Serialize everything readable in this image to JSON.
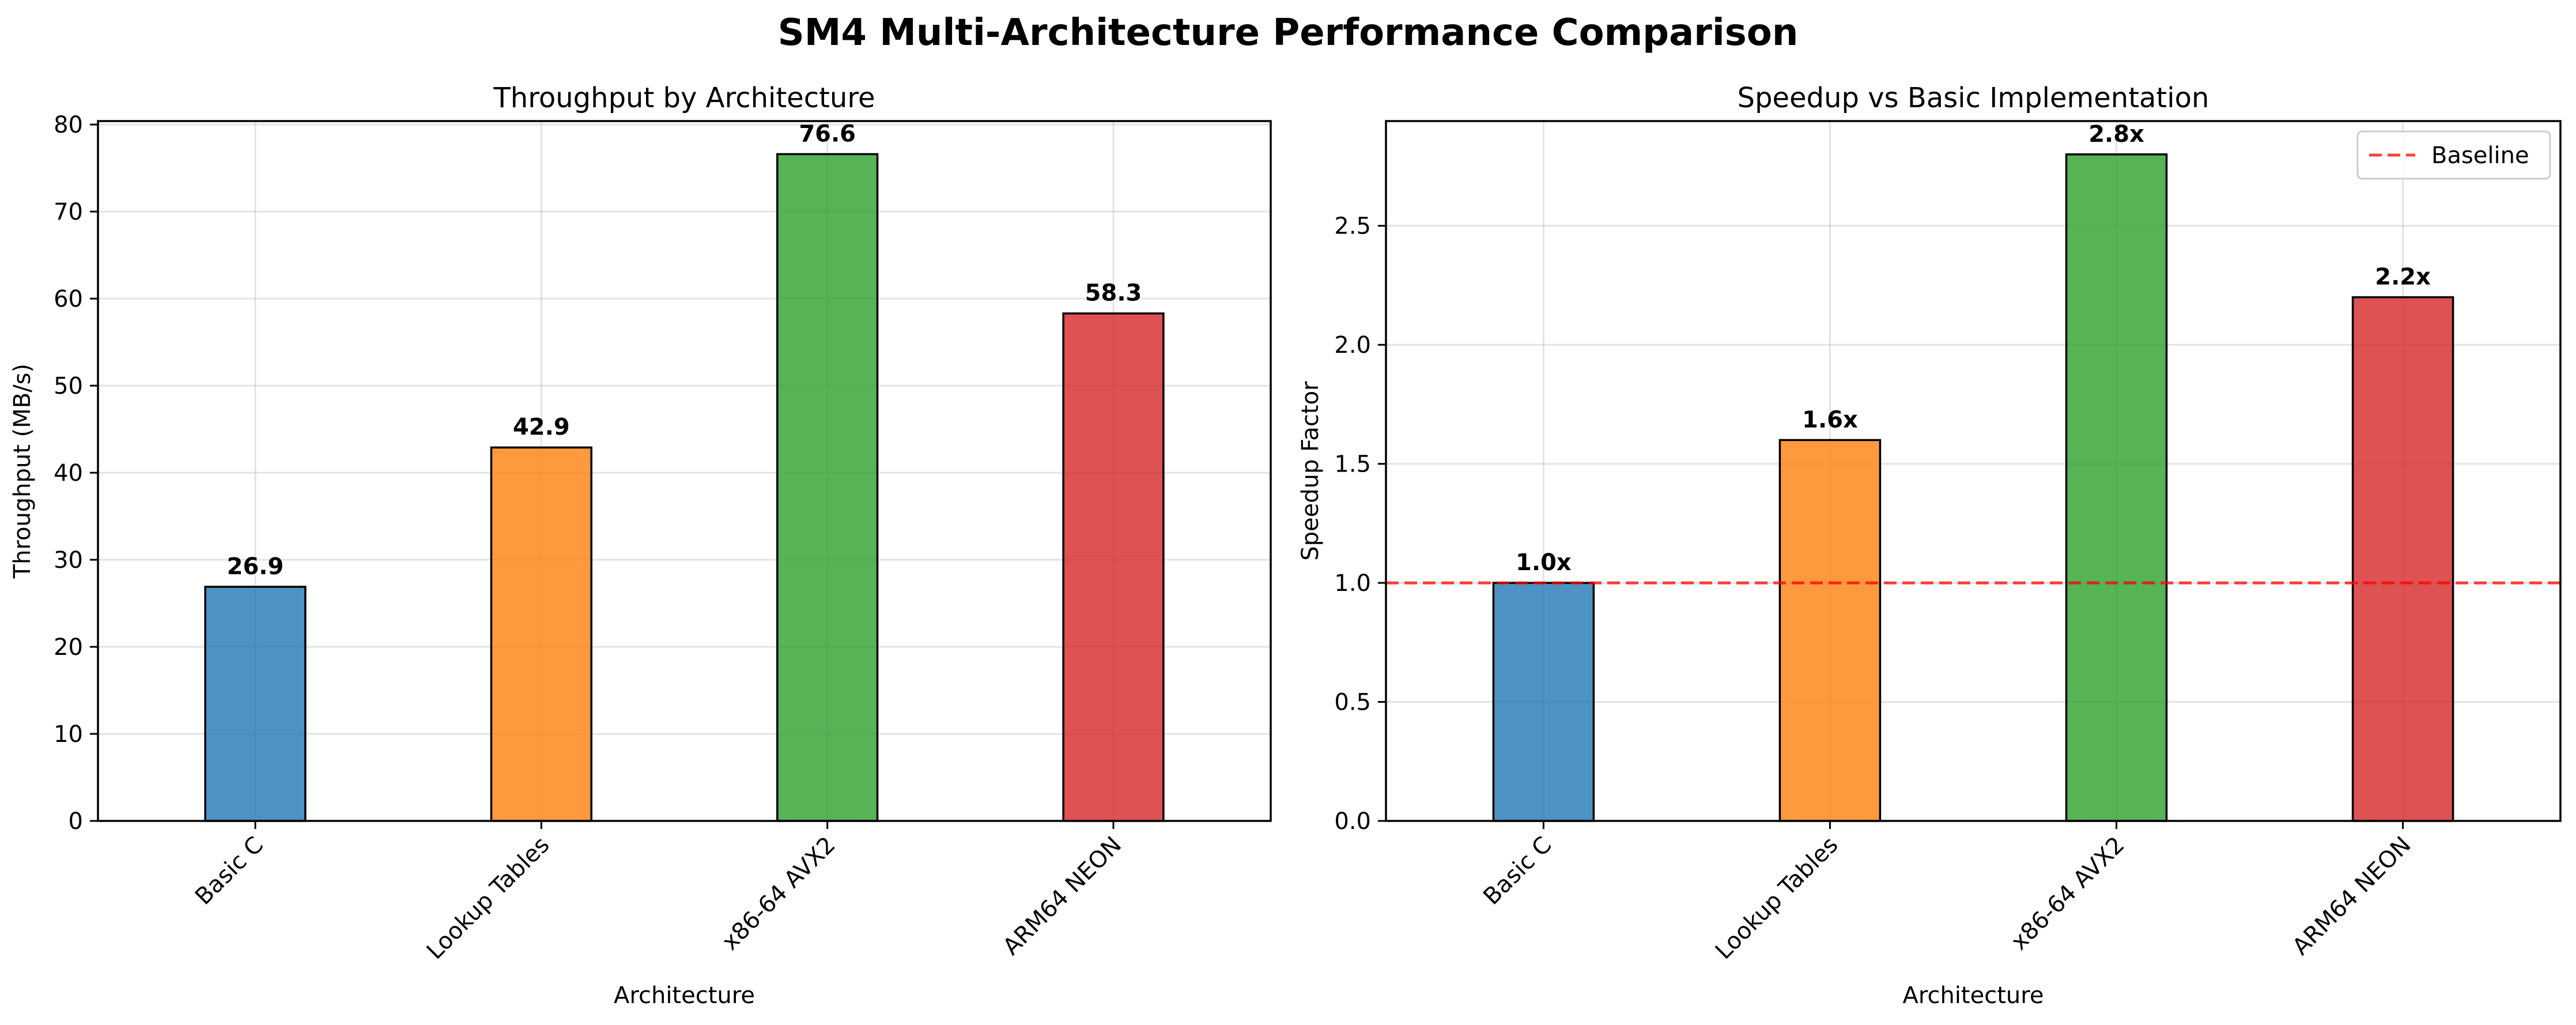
{
  "figure": {
    "suptitle": "SM4 Multi-Architecture Performance Comparison"
  },
  "chart_data": [
    {
      "type": "bar",
      "title": "Throughput by Architecture",
      "xlabel": "Architecture",
      "ylabel": "Throughput (MB/s)",
      "categories": [
        "Basic C",
        "Lookup Tables",
        "x86-64 AVX2",
        "ARM64 NEON"
      ],
      "values": [
        26.9,
        42.9,
        76.6,
        58.3
      ],
      "value_labels": [
        "26.9",
        "42.9",
        "76.6",
        "58.3"
      ],
      "colors": [
        "#1f77b4",
        "#ff7f0e",
        "#2ca02c",
        "#d62728"
      ],
      "ylim": [
        0,
        80.4
      ],
      "yticks": [
        0,
        10,
        20,
        30,
        40,
        50,
        60,
        70,
        80
      ],
      "ytick_labels": [
        "0",
        "10",
        "20",
        "30",
        "40",
        "50",
        "60",
        "70",
        "80"
      ],
      "grid": true
    },
    {
      "type": "bar",
      "title": "Speedup vs Basic Implementation",
      "xlabel": "Architecture",
      "ylabel": "Speedup Factor",
      "categories": [
        "Basic C",
        "Lookup Tables",
        "x86-64 AVX2",
        "ARM64 NEON"
      ],
      "values": [
        1.0,
        1.6,
        2.8,
        2.2
      ],
      "value_labels": [
        "1.0x",
        "1.6x",
        "2.8x",
        "2.2x"
      ],
      "colors": [
        "#1f77b4",
        "#ff7f0e",
        "#2ca02c",
        "#d62728"
      ],
      "ylim": [
        0,
        2.94
      ],
      "yticks": [
        0,
        0.5,
        1.0,
        1.5,
        2.0,
        2.5
      ],
      "ytick_labels": [
        "0.0",
        "0.5",
        "1.0",
        "1.5",
        "2.0",
        "2.5"
      ],
      "grid": true,
      "reference_line": {
        "y": 1.0,
        "label": "Baseline",
        "color": "#ff0000",
        "style": "dashed"
      },
      "legend": {
        "position": "upper right",
        "entries": [
          "Baseline"
        ]
      }
    }
  ]
}
